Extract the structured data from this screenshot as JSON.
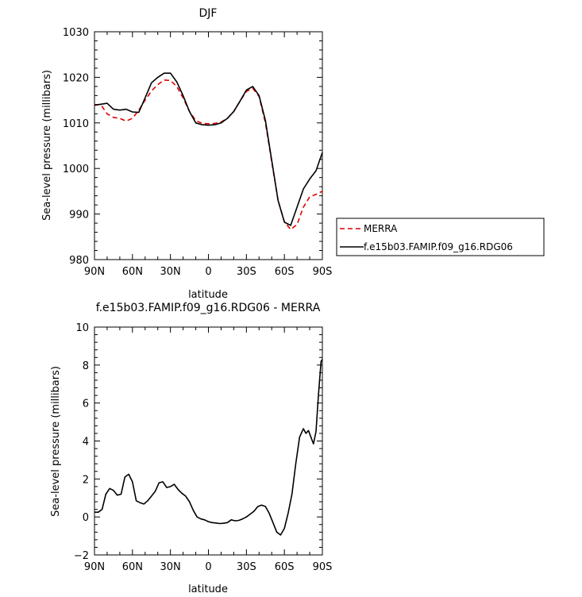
{
  "chart_data": [
    {
      "type": "line",
      "title": "DJF",
      "xlabel": "latitude",
      "ylabel": "Sea-level pressure (millibars)",
      "xlim": [
        90,
        -90
      ],
      "ylim": [
        980,
        1030
      ],
      "xticks": [
        90,
        60,
        30,
        0,
        -30,
        -60,
        -90
      ],
      "xtick_labels": [
        "90N",
        "60N",
        "30N",
        "0",
        "30S",
        "60S",
        "90S"
      ],
      "yticks": [
        980,
        990,
        1000,
        1010,
        1020,
        1030
      ],
      "ytick_labels": [
        "980",
        "990",
        "1000",
        "1010",
        "1020",
        "1030"
      ],
      "legend": {
        "placement": "right"
      },
      "series": [
        {
          "name": "MERRA",
          "color": "#e00000",
          "dash": "dashed",
          "x": [
            90,
            85,
            80,
            75,
            70,
            65,
            60,
            55,
            50,
            45,
            40,
            35,
            30,
            25,
            20,
            15,
            10,
            5,
            0,
            -5,
            -10,
            -15,
            -20,
            -25,
            -30,
            -35,
            -40,
            -45,
            -50,
            -55,
            -60,
            -65,
            -70,
            -75,
            -80,
            -85,
            -90
          ],
          "y": [
            1014.0,
            1014.0,
            1012.0,
            1011.2,
            1011.0,
            1010.4,
            1011.0,
            1012.8,
            1015.0,
            1017.0,
            1018.4,
            1019.4,
            1019.3,
            1018.0,
            1015.5,
            1012.5,
            1010.5,
            1009.9,
            1009.8,
            1009.9,
            1010.2,
            1011.0,
            1012.5,
            1014.8,
            1016.9,
            1017.6,
            1015.8,
            1010.0,
            1001.5,
            993.0,
            988.3,
            986.6,
            987.7,
            991.5,
            993.8,
            994.3,
            995.0
          ]
        },
        {
          "name": "f.e15b03.FAMIP.f09_g16.RDG06",
          "color": "#000000",
          "dash": "solid",
          "x": [
            90,
            85,
            80,
            75,
            70,
            65,
            60,
            55,
            50,
            45,
            40,
            35,
            30,
            25,
            20,
            15,
            10,
            5,
            0,
            -5,
            -10,
            -15,
            -20,
            -25,
            -30,
            -35,
            -40,
            -45,
            -50,
            -55,
            -60,
            -65,
            -70,
            -75,
            -80,
            -85,
            -90
          ],
          "y": [
            1013.9,
            1014.1,
            1014.3,
            1013.0,
            1012.8,
            1013.0,
            1012.4,
            1012.3,
            1015.5,
            1018.8,
            1020.0,
            1020.9,
            1020.9,
            1019.0,
            1016.0,
            1012.5,
            1010.0,
            1009.6,
            1009.5,
            1009.6,
            1010.0,
            1011.0,
            1012.5,
            1014.8,
            1017.2,
            1018.0,
            1016.0,
            1010.5,
            1001.8,
            993.0,
            988.2,
            987.5,
            991.5,
            995.5,
            997.7,
            999.5,
            1003.5
          ]
        }
      ]
    },
    {
      "type": "line",
      "title": "f.e15b03.FAMIP.f09_g16.RDG06 - MERRA",
      "xlabel": "latitude",
      "ylabel": "Sea-level pressure (millibars)",
      "xlim": [
        90,
        -90
      ],
      "ylim": [
        -2,
        10
      ],
      "xticks": [
        90,
        60,
        30,
        0,
        -30,
        -60,
        -90
      ],
      "xtick_labels": [
        "90N",
        "60N",
        "30N",
        "0",
        "30S",
        "60S",
        "90S"
      ],
      "yticks": [
        -2,
        0,
        2,
        4,
        6,
        8,
        10
      ],
      "ytick_labels": [
        "−2",
        "0",
        "2",
        "4",
        "6",
        "8",
        "10"
      ],
      "series": [
        {
          "color": "#000000",
          "dash": "solid",
          "x": [
            90,
            87,
            84,
            81,
            78,
            75,
            72,
            69,
            66,
            63,
            60,
            57,
            54,
            51,
            48,
            45,
            42,
            39,
            36,
            33,
            30,
            27,
            24,
            21,
            18,
            15,
            12,
            9,
            6,
            3,
            0,
            -3,
            -6,
            -9,
            -12,
            -15,
            -18,
            -21,
            -24,
            -27,
            -30,
            -33,
            -36,
            -39,
            -42,
            -45,
            -48,
            -51,
            -54,
            -57,
            -60,
            -63,
            -66,
            -69,
            -72,
            -75,
            -77,
            -79,
            -81,
            -83,
            -85,
            -87,
            -89,
            -90
          ],
          "y": [
            0.25,
            0.25,
            0.4,
            1.2,
            1.5,
            1.4,
            1.15,
            1.2,
            2.1,
            2.25,
            1.85,
            0.85,
            0.75,
            0.68,
            0.85,
            1.1,
            1.35,
            1.8,
            1.85,
            1.55,
            1.6,
            1.72,
            1.45,
            1.25,
            1.1,
            0.8,
            0.35,
            0.0,
            -0.1,
            -0.15,
            -0.25,
            -0.3,
            -0.32,
            -0.35,
            -0.33,
            -0.3,
            -0.15,
            -0.2,
            -0.18,
            -0.1,
            0.0,
            0.15,
            0.3,
            0.55,
            0.62,
            0.55,
            0.2,
            -0.3,
            -0.8,
            -0.95,
            -0.6,
            0.2,
            1.2,
            2.8,
            4.2,
            4.65,
            4.4,
            4.55,
            4.2,
            3.85,
            4.5,
            6.5,
            8.2,
            8.3
          ]
        }
      ]
    }
  ]
}
